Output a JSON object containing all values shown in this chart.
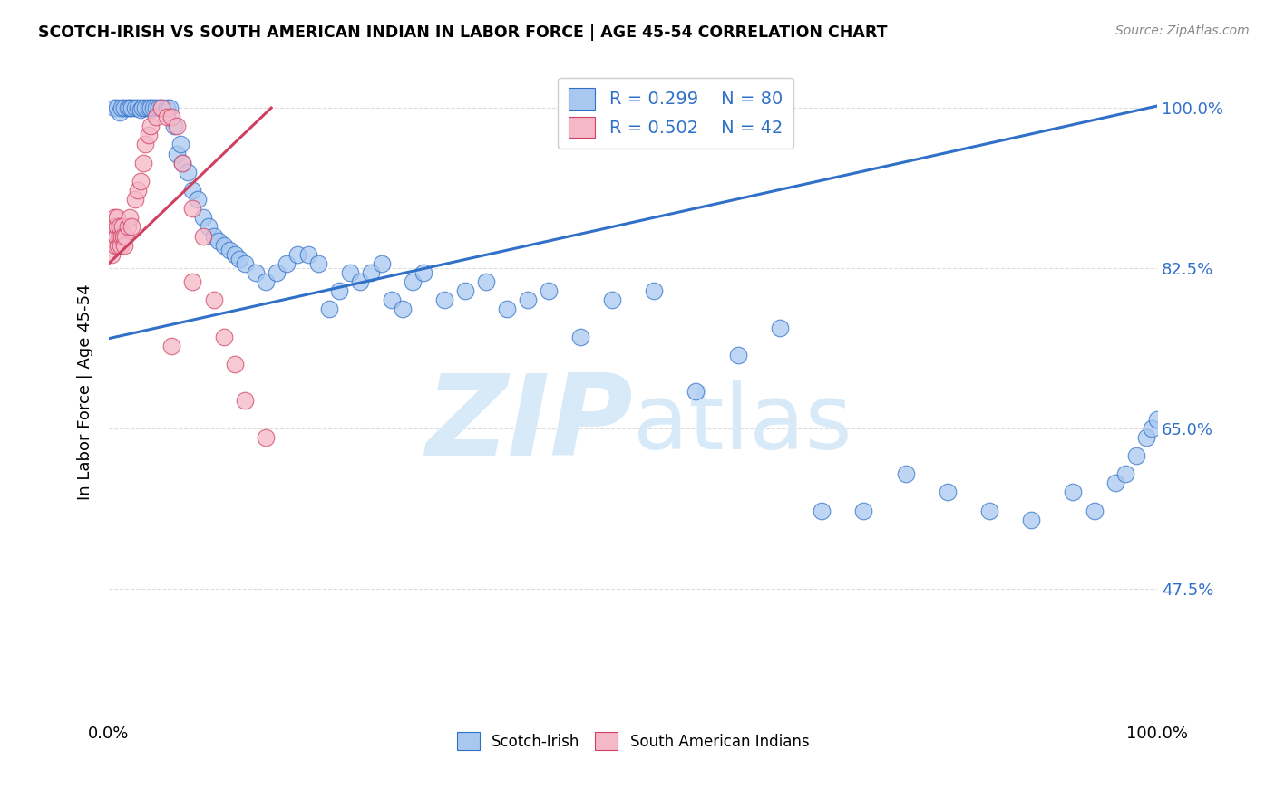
{
  "title": "SCOTCH-IRISH VS SOUTH AMERICAN INDIAN IN LABOR FORCE | AGE 45-54 CORRELATION CHART",
  "source": "Source: ZipAtlas.com",
  "ylabel": "In Labor Force | Age 45-54",
  "xlim": [
    0.0,
    1.0
  ],
  "ylim": [
    0.33,
    1.05
  ],
  "x_ticks": [
    0.0,
    0.2,
    0.4,
    0.6,
    0.8,
    1.0
  ],
  "x_tick_labels": [
    "0.0%",
    "",
    "",
    "",
    "",
    "100.0%"
  ],
  "y_tick_labels": [
    "47.5%",
    "65.0%",
    "82.5%",
    "100.0%"
  ],
  "y_ticks": [
    0.475,
    0.65,
    0.825,
    1.0
  ],
  "legend_r_blue": "R = 0.299",
  "legend_n_blue": "N = 80",
  "legend_r_pink": "R = 0.502",
  "legend_n_pink": "N = 42",
  "blue_color": "#A8C8F0",
  "pink_color": "#F5B8C8",
  "trendline_blue_color": "#3070C8",
  "trendline_pink_color": "#D04060",
  "watermark_zip": "ZIP",
  "watermark_atlas": "atlas",
  "watermark_color": "#D8EAF8",
  "blue_scatter_x": [
    0.005,
    0.008,
    0.01,
    0.012,
    0.015,
    0.018,
    0.02,
    0.022,
    0.025,
    0.028,
    0.03,
    0.032,
    0.035,
    0.038,
    0.04,
    0.042,
    0.045,
    0.048,
    0.05,
    0.055,
    0.058,
    0.062,
    0.065,
    0.068,
    0.07,
    0.075,
    0.08,
    0.085,
    0.09,
    0.095,
    0.1,
    0.105,
    0.11,
    0.115,
    0.12,
    0.125,
    0.13,
    0.14,
    0.15,
    0.16,
    0.17,
    0.18,
    0.19,
    0.2,
    0.21,
    0.22,
    0.23,
    0.24,
    0.25,
    0.26,
    0.27,
    0.28,
    0.29,
    0.3,
    0.32,
    0.34,
    0.36,
    0.38,
    0.4,
    0.42,
    0.45,
    0.48,
    0.52,
    0.56,
    0.6,
    0.64,
    0.68,
    0.72,
    0.76,
    0.8,
    0.84,
    0.88,
    0.92,
    0.94,
    0.96,
    0.97,
    0.98,
    0.99,
    0.995,
    1.0
  ],
  "blue_scatter_y": [
    1.0,
    1.0,
    0.995,
    1.0,
    1.0,
    1.0,
    1.0,
    1.0,
    1.0,
    1.0,
    0.998,
    1.0,
    1.0,
    1.0,
    1.0,
    1.0,
    1.0,
    1.0,
    1.0,
    1.0,
    1.0,
    0.98,
    0.95,
    0.96,
    0.94,
    0.93,
    0.91,
    0.9,
    0.88,
    0.87,
    0.86,
    0.855,
    0.85,
    0.845,
    0.84,
    0.835,
    0.83,
    0.82,
    0.81,
    0.82,
    0.83,
    0.84,
    0.84,
    0.83,
    0.78,
    0.8,
    0.82,
    0.81,
    0.82,
    0.83,
    0.79,
    0.78,
    0.81,
    0.82,
    0.79,
    0.8,
    0.81,
    0.78,
    0.79,
    0.8,
    0.75,
    0.79,
    0.8,
    0.69,
    0.73,
    0.76,
    0.56,
    0.56,
    0.6,
    0.58,
    0.56,
    0.55,
    0.58,
    0.56,
    0.59,
    0.6,
    0.62,
    0.64,
    0.65,
    0.66
  ],
  "pink_scatter_x": [
    0.003,
    0.004,
    0.005,
    0.006,
    0.006,
    0.007,
    0.008,
    0.008,
    0.009,
    0.01,
    0.01,
    0.011,
    0.012,
    0.013,
    0.014,
    0.015,
    0.016,
    0.018,
    0.02,
    0.022,
    0.025,
    0.028,
    0.03,
    0.033,
    0.035,
    0.038,
    0.04,
    0.045,
    0.05,
    0.055,
    0.06,
    0.065,
    0.07,
    0.08,
    0.09,
    0.1,
    0.11,
    0.12,
    0.13,
    0.15,
    0.06,
    0.08
  ],
  "pink_scatter_y": [
    0.84,
    0.86,
    0.88,
    0.85,
    0.87,
    0.86,
    0.87,
    0.88,
    0.85,
    0.86,
    0.87,
    0.85,
    0.86,
    0.87,
    0.86,
    0.85,
    0.86,
    0.87,
    0.88,
    0.87,
    0.9,
    0.91,
    0.92,
    0.94,
    0.96,
    0.97,
    0.98,
    0.99,
    1.0,
    0.99,
    0.99,
    0.98,
    0.94,
    0.89,
    0.86,
    0.79,
    0.75,
    0.72,
    0.68,
    0.64,
    0.74,
    0.81
  ],
  "blue_trend_x": [
    0.0,
    1.0
  ],
  "blue_trend_y": [
    0.748,
    1.002
  ],
  "pink_trend_x": [
    0.0,
    0.155
  ],
  "pink_trend_y": [
    0.83,
    1.0
  ],
  "grid_color": "#DDDDDD",
  "background_color": "#FFFFFF"
}
